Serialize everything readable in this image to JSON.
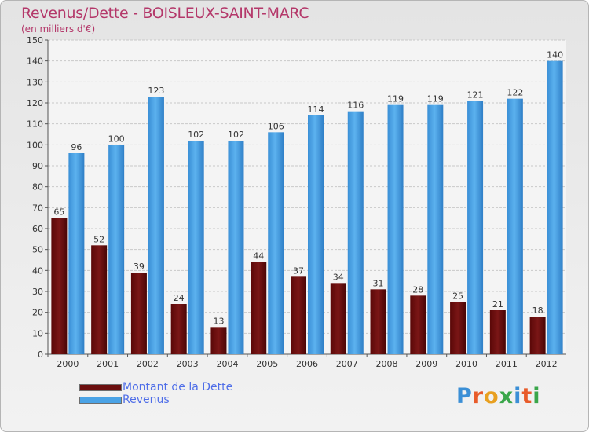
{
  "title": "Revenus/Dette - BOISLEUX-SAINT-MARC",
  "subtitle": "(en milliers d'€)",
  "colors": {
    "dette": "#7a1616",
    "revenus": "#4aa3e6",
    "title": "#b4386a",
    "legend_text": "#4f6ee8"
  },
  "legend": [
    {
      "label": "Montant de la Dette",
      "color": "#6b0f0f"
    },
    {
      "label": "Revenus",
      "color": "#4aa3e6"
    }
  ],
  "logo": {
    "text": "Proxiti",
    "letter_colors": [
      "#3b8fd6",
      "#e85b2a",
      "#e8a020",
      "#3aa64a",
      "#3b8fd6",
      "#e85b2a",
      "#3aa64a"
    ]
  },
  "chart_data": {
    "type": "bar",
    "categories": [
      "2000",
      "2001",
      "2002",
      "2003",
      "2004",
      "2005",
      "2006",
      "2007",
      "2008",
      "2009",
      "2010",
      "2011",
      "2012"
    ],
    "series": [
      {
        "name": "Montant de la Dette",
        "values": [
          65,
          52,
          39,
          24,
          13,
          44,
          37,
          34,
          31,
          28,
          25,
          21,
          18
        ]
      },
      {
        "name": "Revenus",
        "values": [
          96,
          100,
          123,
          102,
          102,
          106,
          114,
          116,
          119,
          119,
          121,
          122,
          140
        ]
      }
    ],
    "title": "Revenus/Dette - BOISLEUX-SAINT-MARC",
    "subtitle": "(en milliers d'€)",
    "ylim": [
      0,
      150
    ],
    "yticks": [
      0,
      10,
      20,
      30,
      40,
      50,
      60,
      70,
      80,
      90,
      100,
      110,
      120,
      130,
      140,
      150
    ],
    "grid": true,
    "legend_position": "bottom-left"
  }
}
